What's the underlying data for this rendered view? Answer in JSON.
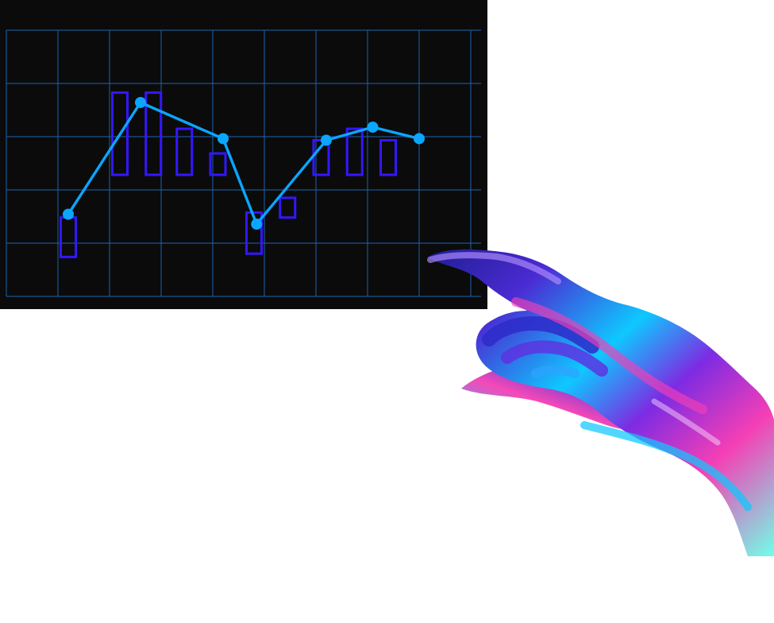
{
  "scene": {
    "background_color": "#ffffff",
    "panel_color": "#0b0b0c",
    "grid_color": "#1d5fa8",
    "bar_color": "#3317ff",
    "line_color": "#0aa6ff",
    "marker_color": "#0aa6ff",
    "hand_palette": [
      "#1d1e8f",
      "#4b2bd3",
      "#0ec8ff",
      "#7d2be3",
      "#f53fb5",
      "#70ffe8"
    ]
  },
  "chart_data": {
    "type": "line",
    "grid": true,
    "legend": "none",
    "bars": [
      {
        "x": 1.2,
        "low": 1.2,
        "high": 2.4
      },
      {
        "x": 2.2,
        "low": 3.7,
        "high": 6.2
      },
      {
        "x": 2.85,
        "low": 3.7,
        "high": 6.2
      },
      {
        "x": 3.45,
        "low": 3.7,
        "high": 5.1
      },
      {
        "x": 4.1,
        "low": 3.7,
        "high": 4.35
      },
      {
        "x": 4.8,
        "low": 1.3,
        "high": 2.55
      },
      {
        "x": 5.45,
        "low": 2.4,
        "high": 3.0
      },
      {
        "x": 6.1,
        "low": 3.7,
        "high": 4.75
      },
      {
        "x": 6.75,
        "low": 3.7,
        "high": 5.1
      },
      {
        "x": 7.4,
        "low": 3.7,
        "high": 4.75
      }
    ],
    "line": {
      "x": [
        1.2,
        2.6,
        4.2,
        4.85,
        6.2,
        7.1,
        8.0
      ],
      "y": [
        2.5,
        5.9,
        4.8,
        2.2,
        4.75,
        5.15,
        4.8
      ]
    },
    "xlim": [
      0,
      9.2
    ],
    "ylim": [
      0,
      8.1
    ]
  }
}
